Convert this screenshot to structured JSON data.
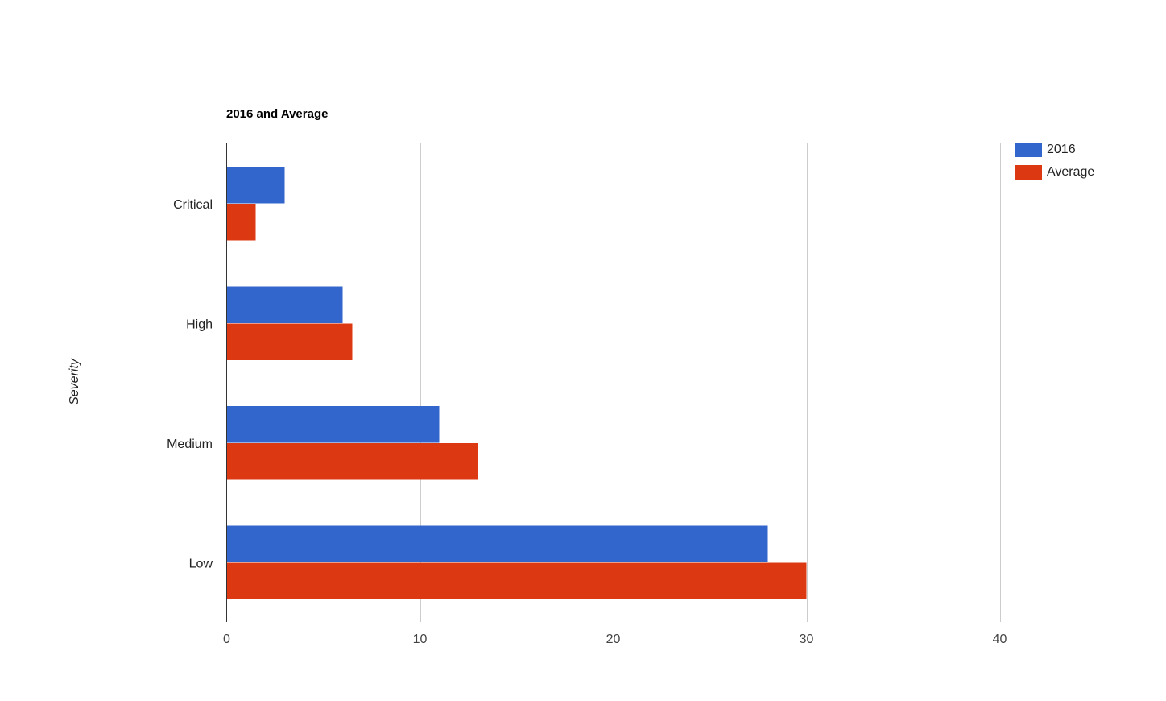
{
  "chart_data": {
    "type": "bar",
    "orientation": "horizontal",
    "title": "2016 and Average",
    "xlabel": "",
    "ylabel": "Severity",
    "categories": [
      "Critical",
      "High",
      "Medium",
      "Low"
    ],
    "series": [
      {
        "name": "2016",
        "values": [
          3,
          6,
          11,
          28
        ],
        "color": "#3366cc"
      },
      {
        "name": "Average",
        "values": [
          1.5,
          6.5,
          13,
          30
        ],
        "color": "#dc3912"
      }
    ],
    "xlim": [
      0,
      40
    ],
    "xticks": [
      "0",
      "10",
      "20",
      "30",
      "40"
    ],
    "grid": true,
    "legend": "top-right"
  }
}
